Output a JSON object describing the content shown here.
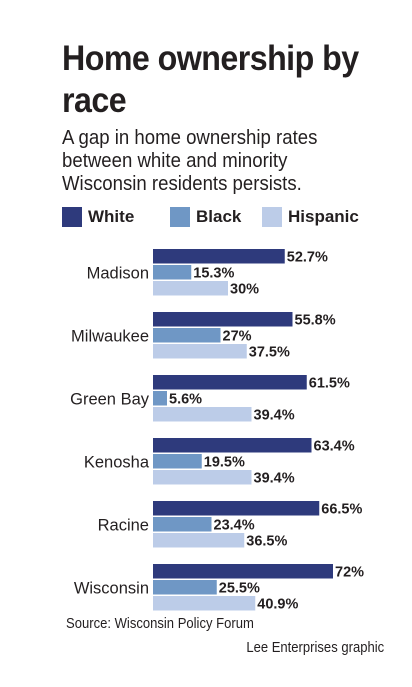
{
  "title": "Home ownership by race",
  "subtitle": "A gap in home ownership rates between white and minority Wisconsin residents persists.",
  "source": "Source: Wisconsin Policy Forum",
  "credit": "Lee Enterprises graphic",
  "colors": {
    "white": "#2e3a7c",
    "black": "#6f97c5",
    "hispanic": "#bccce8"
  },
  "chart_data": {
    "type": "bar",
    "orientation": "horizontal",
    "title": "Home ownership by race",
    "subtitle": "A gap in home ownership rates between white and minority Wisconsin residents persists.",
    "categories": [
      "Madison",
      "Milwaukee",
      "Green Bay",
      "Kenosha",
      "Racine",
      "Wisconsin"
    ],
    "series": [
      {
        "name": "White",
        "values": [
          52.7,
          55.8,
          61.5,
          63.4,
          66.5,
          72
        ],
        "labels": [
          "52.7%",
          "55.8%",
          "61.5%",
          "63.4%",
          "66.5%",
          "72%"
        ]
      },
      {
        "name": "Black",
        "values": [
          15.3,
          27,
          5.6,
          19.5,
          23.4,
          25.5
        ],
        "labels": [
          "15.3%",
          "27%",
          "5.6%",
          "19.5%",
          "23.4%",
          "25.5%"
        ]
      },
      {
        "name": "Hispanic",
        "values": [
          30,
          37.5,
          39.4,
          39.4,
          36.5,
          40.9
        ],
        "labels": [
          "30%",
          "37.5%",
          "39.4%",
          "39.4%",
          "36.5%",
          "40.9%"
        ]
      }
    ],
    "legend": "top",
    "grid": false,
    "xlim": [
      0,
      100
    ]
  }
}
